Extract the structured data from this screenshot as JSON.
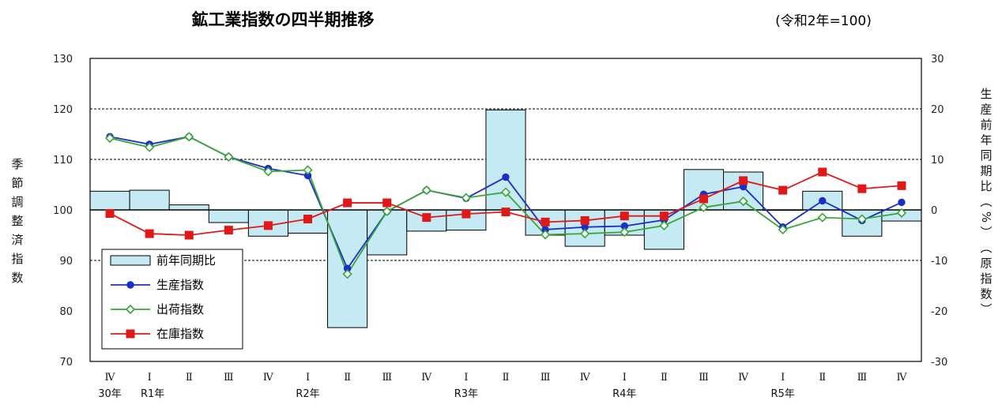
{
  "title": "鉱工業指数の四半期推移",
  "subtitle": "(令和2年=100)",
  "chart_data": {
    "type": "bar+line",
    "categories": [
      "Ⅳ",
      "Ⅰ",
      "Ⅱ",
      "Ⅲ",
      "Ⅳ",
      "Ⅰ",
      "Ⅱ",
      "Ⅲ",
      "Ⅳ",
      "Ⅰ",
      "Ⅱ",
      "Ⅲ",
      "Ⅳ",
      "Ⅰ",
      "Ⅱ",
      "Ⅲ",
      "Ⅳ",
      "Ⅰ",
      "Ⅱ",
      "Ⅲ",
      "Ⅳ"
    ],
    "year_labels": [
      "30年",
      "R1年",
      "",
      "",
      "",
      "R2年",
      "",
      "",
      "",
      "R3年",
      "",
      "",
      "",
      "R4年",
      "",
      "",
      "",
      "R5年",
      "",
      "",
      ""
    ],
    "left_axis": {
      "label_chars": [
        "季",
        "節",
        "調",
        "整",
        "済",
        "指",
        "数"
      ],
      "ylim": [
        70,
        130
      ],
      "ticks": [
        "70",
        "80",
        "90",
        "100",
        "110",
        "120",
        "130"
      ]
    },
    "right_axis": {
      "label_chars": [
        "生",
        "産",
        "前",
        "年",
        "同",
        "期",
        "比",
        "︵",
        "%",
        "︶",
        "︵",
        "原",
        "指",
        "数",
        "︶"
      ],
      "ylim": [
        -30,
        30
      ],
      "ticks": [
        "-30",
        "-20",
        "-10",
        "0",
        "10",
        "20",
        "30"
      ]
    },
    "grid_values": [
      90,
      110,
      120
    ],
    "series": [
      {
        "name": "前年同期比",
        "type": "bar",
        "axis": "right",
        "color": "#c6eaf4",
        "values": [
          3.7,
          3.9,
          1.0,
          -2.5,
          -5.2,
          -4.6,
          -23.3,
          -8.9,
          -4.2,
          -4.0,
          19.8,
          -5.0,
          -7.2,
          -5.0,
          -7.8,
          8.0,
          7.5,
          0.0,
          3.7,
          -5.2,
          -2.2
        ]
      },
      {
        "name": "生産指数",
        "type": "line",
        "axis": "left",
        "color": "#1a2fc8",
        "marker": "circle",
        "values": [
          114.5,
          113.0,
          114.5,
          110.5,
          108.2,
          106.8,
          88.4,
          99.7,
          103.9,
          102.3,
          106.5,
          96.1,
          96.6,
          96.8,
          98.0,
          103.1,
          104.6,
          96.6,
          101.8,
          97.9,
          101.5
        ]
      },
      {
        "name": "出荷指数",
        "type": "line",
        "axis": "left",
        "color": "#3aa63a",
        "marker": "diamond",
        "values": [
          114.2,
          112.4,
          114.5,
          110.5,
          107.6,
          107.9,
          87.3,
          99.7,
          103.9,
          102.4,
          103.5,
          95.1,
          95.3,
          95.6,
          96.9,
          100.5,
          101.7,
          96.1,
          98.5,
          98.2,
          99.4
        ]
      },
      {
        "name": "在庫指数",
        "type": "line",
        "axis": "left",
        "color": "#e01818",
        "marker": "square",
        "values": [
          99.3,
          95.3,
          95.0,
          96.0,
          96.9,
          98.2,
          101.4,
          101.4,
          98.5,
          99.2,
          99.6,
          97.6,
          97.9,
          98.8,
          98.8,
          102.2,
          105.8,
          103.9,
          107.5,
          104.2,
          104.8
        ]
      }
    ],
    "legend": {
      "position": "bottom-left",
      "entries": [
        "前年同期比",
        "生産指数",
        "出荷指数",
        "在庫指数"
      ]
    }
  }
}
